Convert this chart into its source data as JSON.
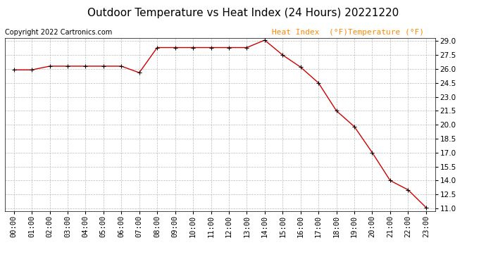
{
  "title": "Outdoor Temperature vs Heat Index (24 Hours) 20221220",
  "copyright_text": "Copyright 2022 Cartronics.com",
  "legend_heat_index": "Heat Index  (°F)",
  "legend_temperature": "Temperature (°F)",
  "x_labels": [
    "00:00",
    "01:00",
    "02:00",
    "03:00",
    "04:00",
    "05:00",
    "06:00",
    "07:00",
    "08:00",
    "09:00",
    "10:00",
    "11:00",
    "12:00",
    "13:00",
    "14:00",
    "15:00",
    "16:00",
    "17:00",
    "18:00",
    "19:00",
    "20:00",
    "21:00",
    "22:00",
    "23:00"
  ],
  "temperature": [
    25.9,
    25.9,
    26.3,
    26.3,
    26.3,
    26.3,
    26.3,
    25.6,
    28.3,
    28.3,
    28.3,
    28.3,
    28.3,
    28.3,
    29.1,
    27.5,
    26.2,
    24.5,
    21.5,
    19.8,
    17.0,
    14.0,
    13.0,
    11.1
  ],
  "ylim_min": 10.7,
  "ylim_max": 29.3,
  "yticks": [
    11.0,
    12.5,
    14.0,
    15.5,
    17.0,
    18.5,
    20.0,
    21.5,
    23.0,
    24.5,
    26.0,
    27.5,
    29.0
  ],
  "line_color": "#cc0000",
  "marker": "+",
  "bg_color": "#ffffff",
  "grid_color": "#bbbbbb",
  "title_color": "#000000",
  "copyright_color": "#000000",
  "legend_color": "#ff8800",
  "title_fontsize": 11,
  "copyright_fontsize": 7,
  "legend_fontsize": 8,
  "tick_fontsize": 7.5,
  "marker_color": "#000000"
}
